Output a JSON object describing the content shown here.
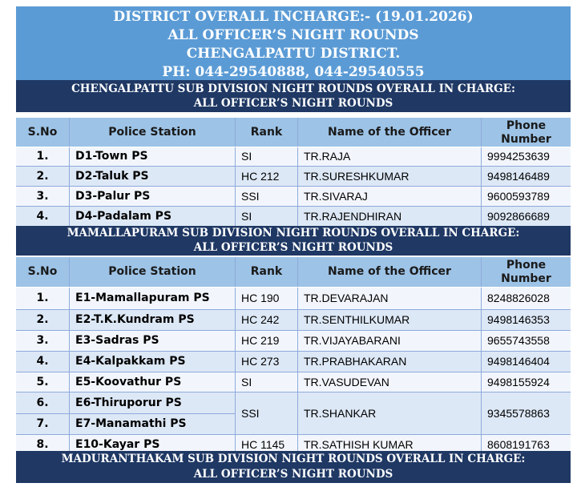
{
  "header": {
    "line1": "DISTRICT OVERALL INCHARGE:- (19.01.2026)",
    "line2": "ALL OFFICER’S NIGHT ROUNDS",
    "line3": "CHENGALPATTU DISTRICT.",
    "line4": "PH: 044-29540888, 044-29540555"
  },
  "columns": {
    "sno": "S.No",
    "station": "Police Station",
    "rank": "Rank",
    "officer": "Name of the Officer",
    "phone_l1": "Phone",
    "phone_l2": "Number"
  },
  "sections": [
    {
      "title_l1": "CHENGALPATTU SUB DIVISION NIGHT ROUNDS OVERALL IN CHARGE:",
      "title_l2": "ALL OFFICER’S NIGHT ROUNDS",
      "rows": [
        {
          "sno": "1.",
          "station": "D1-Town PS",
          "rank": "SI",
          "officer": "TR.RAJA",
          "phone": "9994253639"
        },
        {
          "sno": "2.",
          "station": "D2-Taluk PS",
          "rank": "HC 212",
          "officer": "TR.SURESHKUMAR",
          "phone": "9498146489"
        },
        {
          "sno": "3.",
          "station": "D3-Palur PS",
          "rank": "SSI",
          "officer": "TR.SIVARAJ",
          "phone": "9600593789"
        },
        {
          "sno": "4.",
          "station": "D4-Padalam PS",
          "rank": "SI",
          "officer": "TR.RAJENDHIRAN",
          "phone": "9092866689"
        }
      ]
    },
    {
      "title_l1": "MAMALLAPURAM SUB DIVISION NIGHT ROUNDS OVERALL IN CHARGE:",
      "title_l2": "ALL OFFICER’S NIGHT ROUNDS",
      "rows": [
        {
          "sno": "1.",
          "station": "E1-Mamallapuram PS",
          "rank": "HC 190",
          "officer": "TR.DEVARAJAN",
          "phone": "8248826028"
        },
        {
          "sno": "2.",
          "station": "E2-T.K.Kundram PS",
          "rank": "HC 242",
          "officer": "TR.SENTHILKUMAR",
          "phone": "9498146353"
        },
        {
          "sno": "3.",
          "station": "E3-Sadras PS",
          "rank": "HC 219",
          "officer": "TR.VIJAYABARANI",
          "phone": "9655743558"
        },
        {
          "sno": "4.",
          "station": "E4-Kalpakkam PS",
          "rank": "HC 273",
          "officer": "TR.PRABHAKARAN",
          "phone": "9498146404"
        },
        {
          "sno": "5.",
          "station": "E5-Koovathur PS",
          "rank": "SI",
          "officer": "TR.VASUDEVAN",
          "phone": "9498155924"
        },
        {
          "sno": "6.",
          "station": "E6-Thiruporur PS",
          "rank": "SSI",
          "officer": "TR.SHANKAR",
          "phone": "9345578863"
        },
        {
          "sno": "7.",
          "station": "E7-Manamathi PS",
          "rank": "",
          "officer": "",
          "phone": ""
        },
        {
          "sno": "8.",
          "station": "E10-Kayar PS",
          "rank": "HC 1145",
          "officer": "TR.SATHISH KUMAR",
          "phone": "8608191763"
        }
      ]
    },
    {
      "title_l1": "MADURANTHAKAM SUB DIVISION NIGHT ROUNDS OVERALL IN CHARGE:",
      "title_l2": "ALL OFFICER’S NIGHT ROUNDS"
    }
  ]
}
